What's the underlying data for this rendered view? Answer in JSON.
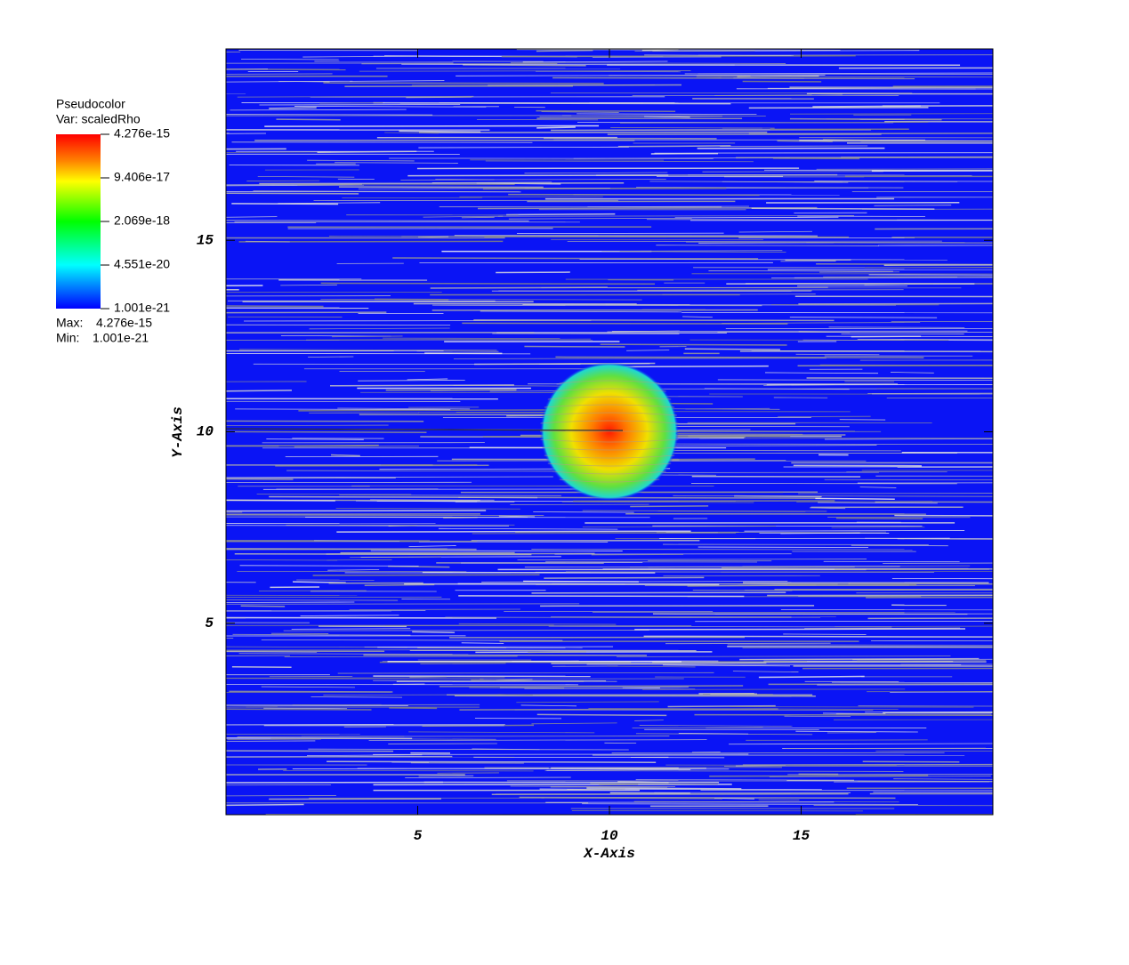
{
  "chart_data": {
    "type": "pseudocolor",
    "xlabel": "X-Axis",
    "ylabel": "Y-Axis",
    "xlim": [
      0,
      20
    ],
    "ylim": [
      0,
      20
    ],
    "xticks": [
      5,
      10,
      15
    ],
    "yticks": [
      5,
      10,
      15
    ],
    "legend": {
      "title": "Pseudocolor",
      "variable": "Var: scaledRho",
      "scale": "log",
      "ticks": [
        4.276e-15,
        9.406e-17,
        2.069e-18,
        4.551e-20,
        1.001e-21
      ],
      "max_label": "Max:",
      "max": 4.276e-15,
      "min_label": "Min:",
      "min": 1.001e-21
    }
  }
}
